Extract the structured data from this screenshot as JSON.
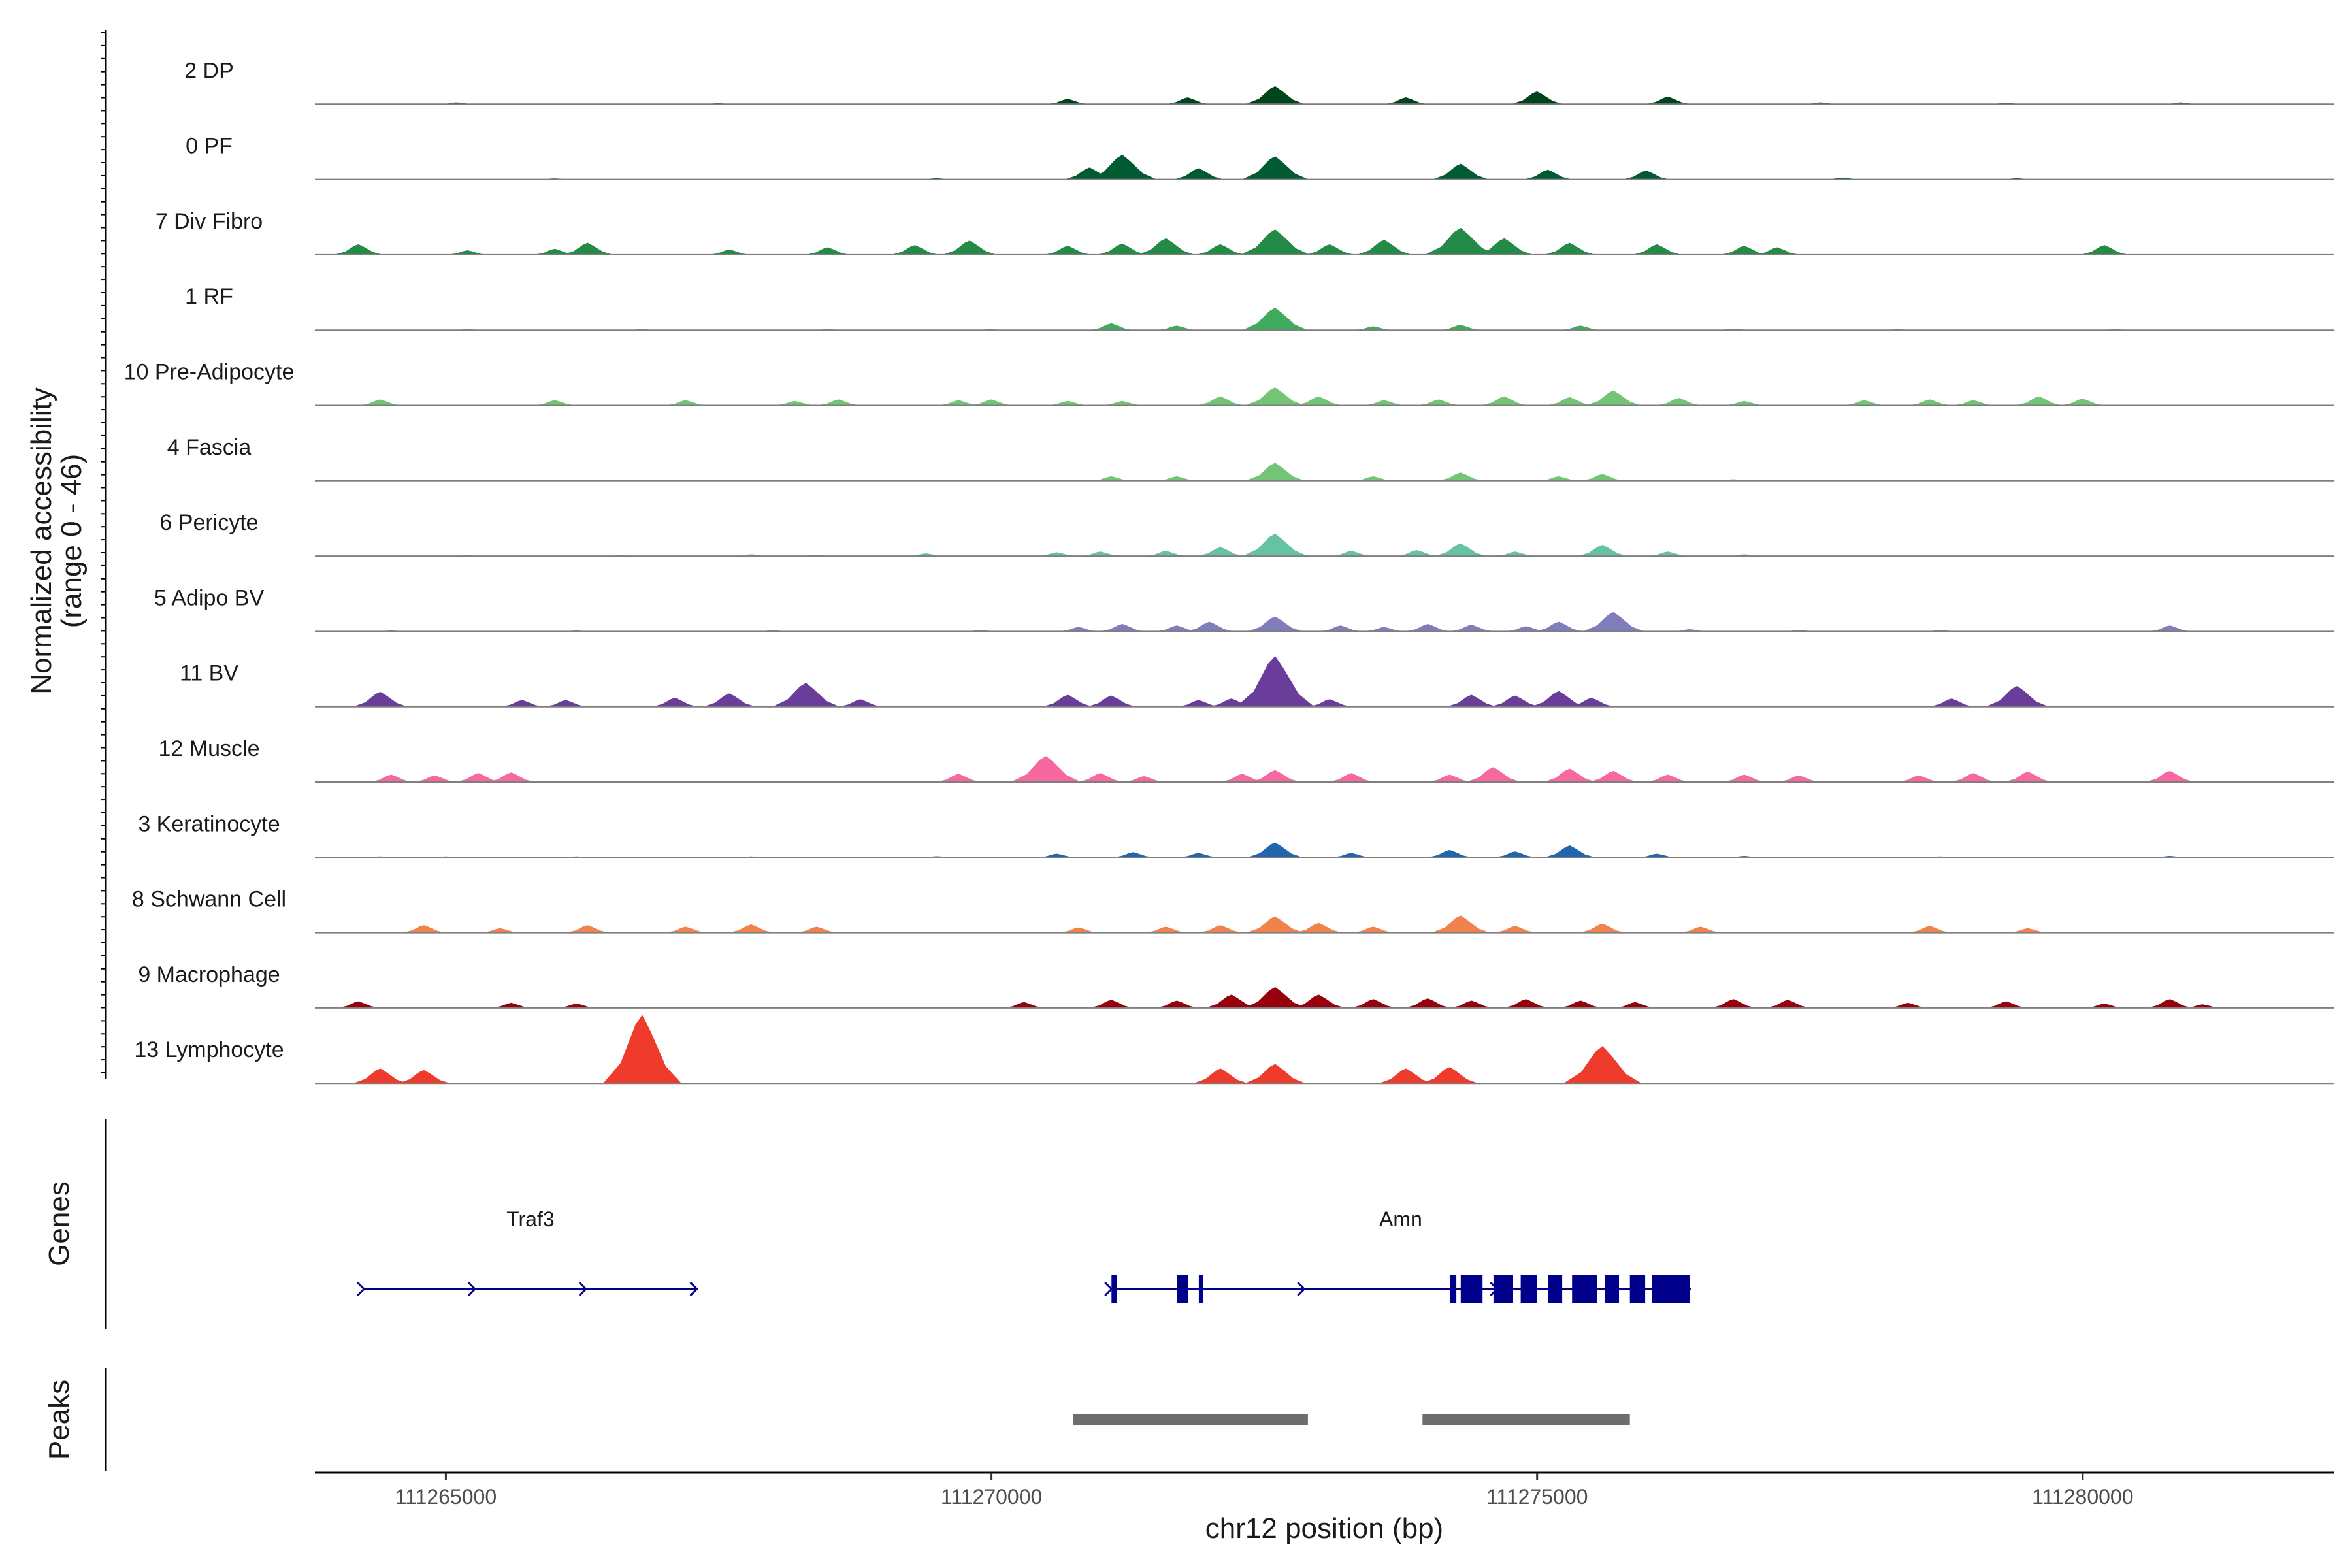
{
  "chart_data": {
    "type": "area",
    "title": "",
    "chromosome": "chr12",
    "xlabel": "chr12 position (bp)",
    "ylabel": "Normalized accessibility",
    "ylabel_range": "(range 0 - 46)",
    "y_range": [
      0,
      46
    ],
    "xlim": [
      111263800,
      111282300
    ],
    "x_ticks": [
      111265000,
      111270000,
      111275000,
      111280000
    ],
    "x_tick_labels": [
      "111265000",
      "111270000",
      "111275000",
      "111280000"
    ],
    "panel_labels": {
      "genes": "Genes",
      "peaks": "Peaks"
    },
    "series": [
      {
        "name": "2 DP",
        "color": "#00441B",
        "peaks": [
          [
            111265100,
            1.2
          ],
          [
            111267500,
            0.6
          ],
          [
            111270700,
            3.5
          ],
          [
            111271800,
            4.5
          ],
          [
            111272600,
            12.0
          ],
          [
            111273800,
            4.5
          ],
          [
            111275000,
            8.5
          ],
          [
            111276200,
            5.0
          ],
          [
            111277600,
            1.2
          ],
          [
            111279300,
            1.0
          ],
          [
            111280900,
            1.2
          ]
        ]
      },
      {
        "name": "0 PF",
        "color": "#005A32",
        "peaks": [
          [
            111266000,
            0.5
          ],
          [
            111269500,
            0.8
          ],
          [
            111270900,
            8.0
          ],
          [
            111271200,
            16.5
          ],
          [
            111271900,
            7.5
          ],
          [
            111272600,
            15.5
          ],
          [
            111274300,
            10.5
          ],
          [
            111275100,
            6.5
          ],
          [
            111276000,
            6.0
          ],
          [
            111277800,
            1.2
          ],
          [
            111279400,
            0.8
          ]
        ]
      },
      {
        "name": "7 Div Fibro",
        "color": "#238B45",
        "peaks": [
          [
            111264200,
            7.0
          ],
          [
            111265200,
            3.0
          ],
          [
            111266000,
            4.0
          ],
          [
            111266300,
            8.0
          ],
          [
            111267600,
            3.5
          ],
          [
            111268500,
            5.0
          ],
          [
            111269300,
            6.5
          ],
          [
            111269800,
            9.5
          ],
          [
            111270700,
            6.0
          ],
          [
            111271200,
            7.5
          ],
          [
            111271600,
            11.0
          ],
          [
            111272100,
            7.0
          ],
          [
            111272600,
            17.0
          ],
          [
            111273100,
            7.0
          ],
          [
            111273600,
            10.0
          ],
          [
            111274300,
            18.0
          ],
          [
            111274700,
            11.0
          ],
          [
            111275300,
            8.0
          ],
          [
            111276100,
            7.0
          ],
          [
            111276900,
            6.0
          ],
          [
            111277200,
            5.0
          ],
          [
            111280200,
            6.5
          ]
        ]
      },
      {
        "name": "1 RF",
        "color": "#41AB5D",
        "peaks": [
          [
            111265200,
            0.5
          ],
          [
            111266800,
            0.6
          ],
          [
            111268500,
            0.6
          ],
          [
            111270000,
            0.6
          ],
          [
            111271100,
            4.5
          ],
          [
            111271700,
            3.0
          ],
          [
            111272600,
            15.0
          ],
          [
            111273500,
            2.5
          ],
          [
            111274300,
            3.5
          ],
          [
            111275400,
            3.0
          ],
          [
            111276800,
            1.0
          ],
          [
            111278300,
            0.6
          ],
          [
            111280300,
            0.6
          ]
        ]
      },
      {
        "name": "10 Pre-Adipocyte",
        "color": "#74C476",
        "peaks": [
          [
            111264400,
            4.0
          ],
          [
            111266000,
            3.5
          ],
          [
            111267200,
            3.5
          ],
          [
            111268200,
            3.0
          ],
          [
            111268600,
            4.0
          ],
          [
            111269700,
            3.5
          ],
          [
            111270000,
            4.0
          ],
          [
            111270700,
            3.0
          ],
          [
            111271200,
            3.0
          ],
          [
            111272100,
            6.0
          ],
          [
            111272600,
            12.0
          ],
          [
            111273000,
            6.0
          ],
          [
            111273600,
            3.5
          ],
          [
            111274100,
            4.0
          ],
          [
            111274700,
            6.0
          ],
          [
            111275300,
            5.5
          ],
          [
            111275700,
            10.0
          ],
          [
            111276300,
            5.0
          ],
          [
            111276900,
            3.0
          ],
          [
            111278000,
            3.5
          ],
          [
            111278600,
            4.0
          ],
          [
            111279000,
            3.5
          ],
          [
            111279600,
            6.0
          ],
          [
            111280000,
            4.5
          ]
        ]
      },
      {
        "name": "4 Fascia",
        "color": "#74C476",
        "peaks": [
          [
            111264400,
            0.5
          ],
          [
            111265000,
            0.8
          ],
          [
            111266800,
            0.5
          ],
          [
            111268500,
            0.6
          ],
          [
            111270300,
            0.6
          ],
          [
            111271100,
            3.0
          ],
          [
            111271700,
            3.0
          ],
          [
            111272600,
            12.0
          ],
          [
            111273500,
            3.0
          ],
          [
            111274300,
            5.5
          ],
          [
            111275200,
            3.0
          ],
          [
            111275600,
            4.5
          ],
          [
            111276800,
            1.0
          ],
          [
            111278300,
            0.6
          ],
          [
            111280400,
            0.6
          ]
        ]
      },
      {
        "name": "6 Pericyte",
        "color": "#66C2A4",
        "peaks": [
          [
            111265200,
            0.5
          ],
          [
            111266600,
            0.6
          ],
          [
            111267800,
            1.2
          ],
          [
            111268400,
            1.0
          ],
          [
            111269400,
            1.8
          ],
          [
            111270600,
            2.5
          ],
          [
            111271000,
            3.0
          ],
          [
            111271600,
            3.5
          ],
          [
            111272100,
            6.0
          ],
          [
            111272600,
            15.0
          ],
          [
            111273300,
            3.5
          ],
          [
            111273900,
            4.0
          ],
          [
            111274300,
            8.5
          ],
          [
            111274800,
            3.0
          ],
          [
            111275600,
            7.5
          ],
          [
            111276200,
            3.0
          ],
          [
            111276900,
            1.2
          ]
        ]
      },
      {
        "name": "5 Adipo BV",
        "color": "#807DBA",
        "peaks": [
          [
            111264500,
            0.6
          ],
          [
            111266200,
            0.6
          ],
          [
            111268000,
            0.8
          ],
          [
            111269900,
            1.0
          ],
          [
            111270800,
            3.0
          ],
          [
            111271200,
            5.0
          ],
          [
            111271700,
            4.0
          ],
          [
            111272000,
            6.5
          ],
          [
            111272600,
            10.0
          ],
          [
            111273200,
            4.0
          ],
          [
            111273600,
            3.0
          ],
          [
            111274000,
            5.0
          ],
          [
            111274400,
            4.5
          ],
          [
            111274900,
            3.5
          ],
          [
            111275200,
            6.5
          ],
          [
            111275700,
            13.0
          ],
          [
            111276400,
            1.5
          ],
          [
            111277400,
            1.0
          ],
          [
            111278700,
            1.0
          ],
          [
            111280800,
            4.0
          ]
        ]
      },
      {
        "name": "11 BV",
        "color": "#6A3D9A",
        "peaks": [
          [
            111264400,
            10.0
          ],
          [
            111265700,
            4.5
          ],
          [
            111266100,
            4.5
          ],
          [
            111267100,
            6.0
          ],
          [
            111267600,
            9.0
          ],
          [
            111268300,
            16.0
          ],
          [
            111268800,
            5.0
          ],
          [
            111270700,
            8.0
          ],
          [
            111271100,
            7.5
          ],
          [
            111271900,
            4.5
          ],
          [
            111272200,
            5.5
          ],
          [
            111272600,
            34.0
          ],
          [
            111273100,
            5.0
          ],
          [
            111274400,
            8.0
          ],
          [
            111274800,
            7.5
          ],
          [
            111275200,
            10.5
          ],
          [
            111275500,
            6.0
          ],
          [
            111278800,
            5.5
          ],
          [
            111279400,
            14.0
          ]
        ]
      },
      {
        "name": "12 Muscle",
        "color": "#F768A1",
        "peaks": [
          [
            111264500,
            5.0
          ],
          [
            111264900,
            4.5
          ],
          [
            111265300,
            6.0
          ],
          [
            111265600,
            6.5
          ],
          [
            111269700,
            5.5
          ],
          [
            111270500,
            17.5
          ],
          [
            111271000,
            6.0
          ],
          [
            111271400,
            4.0
          ],
          [
            111272300,
            5.5
          ],
          [
            111272600,
            8.0
          ],
          [
            111273300,
            6.0
          ],
          [
            111274200,
            5.0
          ],
          [
            111274600,
            10.0
          ],
          [
            111275300,
            9.0
          ],
          [
            111275700,
            7.5
          ],
          [
            111276200,
            5.0
          ],
          [
            111276900,
            5.0
          ],
          [
            111277400,
            4.5
          ],
          [
            111278500,
            4.5
          ],
          [
            111279000,
            6.0
          ],
          [
            111279500,
            7.0
          ],
          [
            111280800,
            7.5
          ]
        ]
      },
      {
        "name": "3 Keratinocyte",
        "color": "#2166AC",
        "peaks": [
          [
            111264400,
            0.6
          ],
          [
            111265000,
            0.6
          ],
          [
            111266200,
            0.6
          ],
          [
            111267800,
            0.6
          ],
          [
            111269500,
            0.8
          ],
          [
            111270600,
            2.5
          ],
          [
            111271300,
            3.5
          ],
          [
            111271900,
            3.0
          ],
          [
            111272600,
            10.0
          ],
          [
            111273300,
            3.0
          ],
          [
            111274200,
            5.0
          ],
          [
            111274800,
            4.0
          ],
          [
            111275300,
            8.0
          ],
          [
            111276100,
            2.5
          ],
          [
            111276900,
            1.0
          ],
          [
            111278700,
            0.6
          ],
          [
            111280800,
            1.0
          ]
        ]
      },
      {
        "name": "8 Schwann Cell",
        "color": "#F0824C",
        "peaks": [
          [
            111264800,
            5.0
          ],
          [
            111265500,
            3.0
          ],
          [
            111266300,
            5.0
          ],
          [
            111267200,
            4.0
          ],
          [
            111267800,
            5.5
          ],
          [
            111268400,
            4.0
          ],
          [
            111270800,
            3.5
          ],
          [
            111271600,
            4.0
          ],
          [
            111272100,
            5.0
          ],
          [
            111272600,
            11.0
          ],
          [
            111273000,
            6.5
          ],
          [
            111273500,
            4.0
          ],
          [
            111274300,
            11.5
          ],
          [
            111274800,
            4.5
          ],
          [
            111275600,
            6.0
          ],
          [
            111276500,
            4.0
          ],
          [
            111278600,
            4.5
          ],
          [
            111279500,
            3.0
          ]
        ]
      },
      {
        "name": "9 Macrophage",
        "color": "#99000D",
        "peaks": [
          [
            111264200,
            4.5
          ],
          [
            111265600,
            3.5
          ],
          [
            111266200,
            3.0
          ],
          [
            111270300,
            4.0
          ],
          [
            111271100,
            5.5
          ],
          [
            111271700,
            5.0
          ],
          [
            111272200,
            9.0
          ],
          [
            111272600,
            14.0
          ],
          [
            111273000,
            9.0
          ],
          [
            111273500,
            6.0
          ],
          [
            111274000,
            6.5
          ],
          [
            111274400,
            5.0
          ],
          [
            111274900,
            6.0
          ],
          [
            111275400,
            5.0
          ],
          [
            111275900,
            4.0
          ],
          [
            111276800,
            6.0
          ],
          [
            111277300,
            5.5
          ],
          [
            111278400,
            3.5
          ],
          [
            111279300,
            4.5
          ],
          [
            111280200,
            3.0
          ],
          [
            111280800,
            6.0
          ],
          [
            111281100,
            2.5
          ]
        ]
      },
      {
        "name": "13 Lymphocyte",
        "color": "#EF3B2C",
        "peaks": [
          [
            111264400,
            10.0
          ],
          [
            111264800,
            9.0
          ],
          [
            111266800,
            46.0
          ],
          [
            111272100,
            10.0
          ],
          [
            111272600,
            13.0
          ],
          [
            111273800,
            10.0
          ],
          [
            111274200,
            11.0
          ],
          [
            111275600,
            25.0
          ]
        ]
      }
    ],
    "genes": [
      {
        "name": "Traf3",
        "start": 111264250,
        "end": 111267300,
        "strand": "+",
        "exons": []
      },
      {
        "name": "Amn",
        "start": 111271100,
        "end": 111276400,
        "strand": "+",
        "exons": [
          [
            111271100,
            111271150
          ],
          [
            111271700,
            111271800
          ],
          [
            111271900,
            111271940
          ],
          [
            111274200,
            111274260
          ],
          [
            111274300,
            111274500
          ],
          [
            111274600,
            111274780
          ],
          [
            111274850,
            111275000
          ],
          [
            111275100,
            111275230
          ],
          [
            111275320,
            111275550
          ],
          [
            111275620,
            111275750
          ],
          [
            111275850,
            111275990
          ],
          [
            111276050,
            111276400
          ]
        ]
      }
    ],
    "peak_regions": [
      [
        111270750,
        111272900
      ],
      [
        111273950,
        111275850
      ]
    ]
  }
}
